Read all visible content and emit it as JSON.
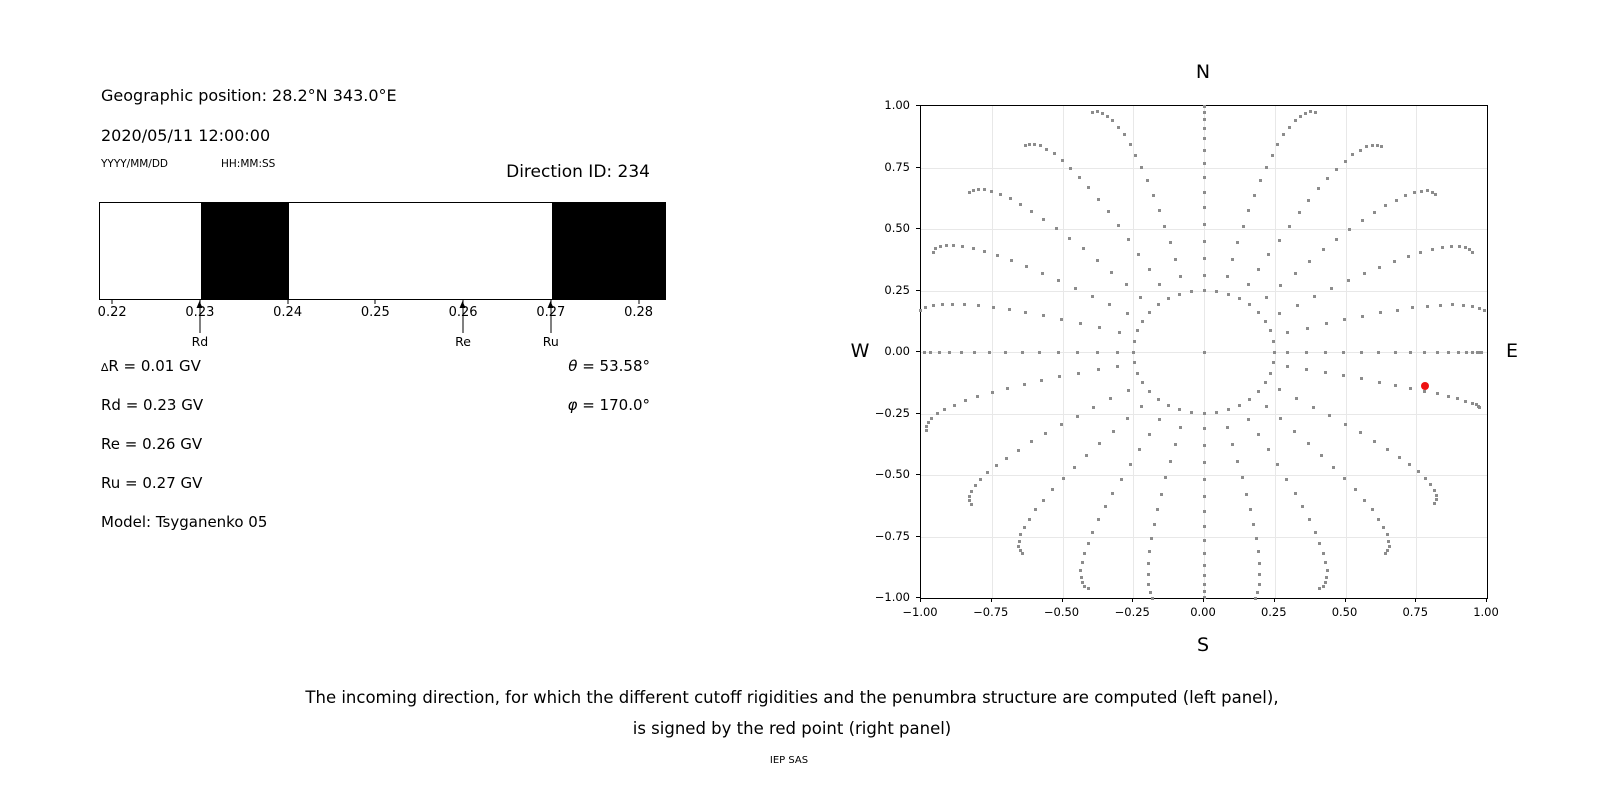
{
  "header": {
    "geo_position": "Geographic position: 28.2°N 343.0°E",
    "datetime": "2020/05/11 12:00:00",
    "date_format": "YYYY/MM/DD",
    "time_format": "HH:MM:SS",
    "direction_id": "Direction ID: 234"
  },
  "info": {
    "delta_sym": "∆",
    "delta_val": "R = 0.01 GV",
    "rd": "Rd = 0.23 GV",
    "re": "Re = 0.26 GV",
    "ru": "Ru = 0.27 GV",
    "model": "Model: Tsyganenko 05",
    "theta_sym": "θ",
    "theta_val": " = 53.58°",
    "phi_sym": "φ",
    "phi_val": " = 170.0°"
  },
  "skyplot_labels": {
    "n": "N",
    "s": "S",
    "e": "E",
    "w": "W"
  },
  "caption": {
    "line1": "The incoming direction, for which the different cutoff rigidities and the penumbra structure are computed (left panel),",
    "line2": "is signed by the red point (right panel)",
    "credit": "IEP SAS"
  },
  "colors": {
    "band": "#000000",
    "grid": "#e8e8e8",
    "gray_dot": "#8c8c8c",
    "red_point": "#ee1111"
  },
  "chart_data": [
    {
      "id": "penumbra",
      "type": "bar",
      "title": "",
      "xlim": [
        0.2185,
        0.2829
      ],
      "x_ticks": [
        0.22,
        0.23,
        0.24,
        0.25,
        0.26,
        0.27,
        0.28
      ],
      "x_tick_labels": [
        "0.22",
        "0.23",
        "0.24",
        "0.25",
        "0.26",
        "0.27",
        "0.28"
      ],
      "forbidden_bands": [
        [
          0.23,
          0.24
        ],
        [
          0.27,
          0.2829
        ]
      ],
      "markers": [
        {
          "label": "Rd",
          "x": 0.23
        },
        {
          "label": "Re",
          "x": 0.26
        },
        {
          "label": "Ru",
          "x": 0.27
        }
      ],
      "values": {
        "delta_R_GV": 0.01,
        "Rd_GV": 0.23,
        "Re_GV": 0.26,
        "Ru_GV": 0.27
      }
    },
    {
      "id": "directions",
      "type": "scatter",
      "xlim": [
        -1.0,
        1.0
      ],
      "ylim": [
        -1.0,
        1.0
      ],
      "grid": true,
      "x_ticks": [
        -1.0,
        -0.75,
        -0.5,
        -0.25,
        0.0,
        0.25,
        0.5,
        0.75,
        1.0
      ],
      "x_tick_labels": [
        "−1.00",
        "−0.75",
        "−0.50",
        "−0.25",
        "0.00",
        "0.25",
        "0.50",
        "0.75",
        "1.00"
      ],
      "y_ticks": [
        1.0,
        0.75,
        0.5,
        0.25,
        0.0,
        -0.25,
        -0.5,
        -0.75,
        -1.0
      ],
      "y_tick_labels": [
        "1.00",
        "0.75",
        "0.50",
        "0.25",
        "0.00",
        "−0.25",
        "−0.50",
        "−0.75",
        "−1.00"
      ],
      "red_point": {
        "x": 0.78,
        "y": -0.14,
        "theta_deg": 53.58,
        "phi_deg": 170.0
      },
      "gray_grid": {
        "center_dot": [
          0,
          0
        ],
        "ring_radius": 0.25,
        "ring_points": 36,
        "spoke_step_deg": 15,
        "spoke_points": 17,
        "spoke_r_start": 0.31,
        "spoke_r_span": 0.72,
        "spoke_tip_bend_deg": 7,
        "clip_limit": 1.002,
        "tip_radius": {
          "0": 1.03,
          "15": 1.05,
          "30": 1.045,
          "45": 1.04,
          "60": 1.03,
          "75": 1.02,
          "90": 0.98,
          "105": 1.0,
          "120": 1.02,
          "135": 1.04,
          "150": 1.045,
          "165": 1.05,
          "180": 1.03,
          "195": 1.05,
          "210": 1.045,
          "225": 1.04,
          "240": 1.03,
          "255": 1.03,
          "270": 1.02,
          "285": 1.03,
          "300": 1.04,
          "315": 1.05,
          "330": 1.05,
          "345": 1.05
        },
        "bend_dir": {
          "0": 0,
          "15": 1,
          "30": 1,
          "45": 1,
          "60": 1,
          "75": 1,
          "90": 0,
          "105": 0.3,
          "120": 1,
          "135": 1,
          "150": 1,
          "165": 1,
          "180": 0,
          "195": -1,
          "210": -1,
          "225": -1,
          "240": -1,
          "255": -1,
          "270": 0,
          "285": -1,
          "300": -1,
          "315": -1,
          "330": -1,
          "345": -1
        },
        "azimuth_offset": {
          "105": -4,
          "255": 4
        }
      }
    }
  ]
}
